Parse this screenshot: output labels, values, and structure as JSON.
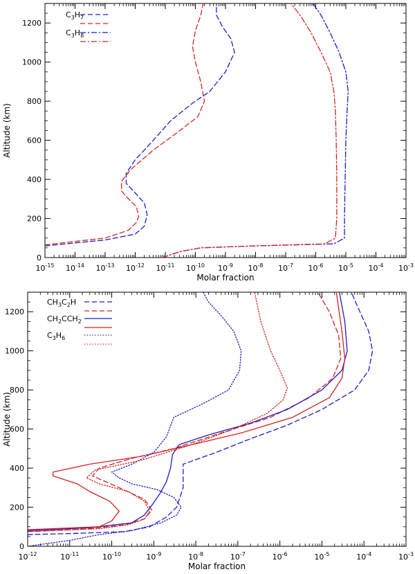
{
  "chart_data": [
    {
      "type": "line",
      "xscale": "log",
      "xlim": [
        1e-15,
        0.001
      ],
      "ylim": [
        0,
        1300
      ],
      "xlabel": "Molar fraction",
      "ylabel": "Altitude (km)",
      "legend_position": "top-left",
      "x_ticks": [
        {
          "base": "10",
          "exp": "-15"
        },
        {
          "base": "10",
          "exp": "-14"
        },
        {
          "base": "10",
          "exp": "-13"
        },
        {
          "base": "10",
          "exp": "-12"
        },
        {
          "base": "10",
          "exp": "-11"
        },
        {
          "base": "10",
          "exp": "-10"
        },
        {
          "base": "10",
          "exp": "-9"
        },
        {
          "base": "10",
          "exp": "-8"
        },
        {
          "base": "10",
          "exp": "-7"
        },
        {
          "base": "10",
          "exp": "-6"
        },
        {
          "base": "10",
          "exp": "-5"
        },
        {
          "base": "10",
          "exp": "-4"
        },
        {
          "base": "10",
          "exp": "-3"
        }
      ],
      "y_ticks": [
        "0",
        "200",
        "400",
        "600",
        "800",
        "1000",
        "1200"
      ],
      "legend": [
        {
          "main": "C",
          "sub1": "3",
          "mid": "H",
          "sub2": "7",
          "style": "dashed"
        },
        {
          "main": "C",
          "sub1": "3",
          "mid": "H",
          "sub2": "8",
          "style": "dashdot"
        }
      ],
      "series": [
        {
          "name": "C3H7 (blue)",
          "color": "#1a1ac8",
          "style": "dashed",
          "x": [
            1e-15,
            1e-13,
            1e-12,
            2e-12,
            2.5e-12,
            2e-12,
            1e-12,
            5e-13,
            5e-13,
            1e-12,
            4e-12,
            1.5e-11,
            8e-11,
            3e-10,
            1e-09,
            2e-09,
            1.5e-09,
            8e-10,
            5e-10,
            5e-10
          ],
          "y": [
            60,
            90,
            120,
            160,
            220,
            280,
            330,
            380,
            430,
            500,
            600,
            700,
            790,
            850,
            950,
            1050,
            1120,
            1180,
            1240,
            1300
          ]
        },
        {
          "name": "C3H7 (red)",
          "color": "#d42020",
          "style": "dashed",
          "x": [
            1e-15,
            1e-13,
            6e-13,
            1.1e-12,
            1.3e-12,
            1.1e-12,
            6e-13,
            3.5e-13,
            3.5e-13,
            7e-13,
            4e-12,
            2.5e-11,
            1.2e-10,
            2e-10,
            1.5e-10,
            1e-10,
            8e-11,
            1e-10,
            1.5e-10,
            1.8e-10
          ],
          "y": [
            65,
            100,
            140,
            180,
            210,
            260,
            300,
            340,
            390,
            450,
            550,
            640,
            720,
            800,
            900,
            1000,
            1080,
            1160,
            1240,
            1300
          ]
        },
        {
          "name": "C3H8 (blue)",
          "color": "#1a1ac8",
          "style": "dashdot",
          "x": [
            8e-12,
            3e-11,
            1.5e-10,
            1e-08,
            4e-06,
            9e-06,
            9e-06,
            9.5e-06,
            1e-05,
            1.1e-05,
            1.2e-05,
            1e-05,
            6e-06,
            3e-06,
            1.5e-06,
            8e-07
          ],
          "y": [
            0,
            30,
            50,
            60,
            70,
            100,
            200,
            400,
            600,
            750,
            850,
            950,
            1050,
            1150,
            1240,
            1300
          ]
        },
        {
          "name": "C3H8 (red)",
          "color": "#d42020",
          "style": "dashdot",
          "x": [
            8e-12,
            3e-11,
            1.5e-10,
            1e-08,
            2e-06,
            4.5e-06,
            5e-06,
            5e-06,
            4.8e-06,
            4.5e-06,
            4e-06,
            3e-06,
            1.5e-06,
            7e-07,
            3e-07,
            1.5e-07
          ],
          "y": [
            0,
            30,
            50,
            60,
            70,
            100,
            200,
            400,
            600,
            750,
            850,
            950,
            1050,
            1150,
            1240,
            1300
          ]
        }
      ]
    },
    {
      "type": "line",
      "xscale": "log",
      "xlim": [
        1e-12,
        0.001
      ],
      "ylim": [
        0,
        1300
      ],
      "xlabel": "Molar fraction",
      "ylabel": "Altitude (km)",
      "legend_position": "top-left",
      "x_ticks": [
        {
          "base": "10",
          "exp": "-12"
        },
        {
          "base": "10",
          "exp": "-11"
        },
        {
          "base": "10",
          "exp": "-10"
        },
        {
          "base": "10",
          "exp": "-9"
        },
        {
          "base": "10",
          "exp": "-8"
        },
        {
          "base": "10",
          "exp": "-7"
        },
        {
          "base": "10",
          "exp": "-6"
        },
        {
          "base": "10",
          "exp": "-5"
        },
        {
          "base": "10",
          "exp": "-4"
        },
        {
          "base": "10",
          "exp": "-3"
        }
      ],
      "y_ticks": [
        "0",
        "200",
        "400",
        "600",
        "800",
        "1000",
        "1200"
      ],
      "legend": [
        {
          "segments": [
            {
              "t": "CH",
              "s": false
            },
            {
              "t": "3",
              "s": true
            },
            {
              "t": "C",
              "s": false
            },
            {
              "t": "2",
              "s": true
            },
            {
              "t": "H",
              "s": false
            }
          ],
          "style": "dashed"
        },
        {
          "segments": [
            {
              "t": "CH",
              "s": false
            },
            {
              "t": "2",
              "s": true
            },
            {
              "t": "CCH",
              "s": false
            },
            {
              "t": "2",
              "s": true
            }
          ],
          "style": "solid"
        },
        {
          "segments": [
            {
              "t": "C",
              "s": false
            },
            {
              "t": "3",
              "s": true
            },
            {
              "t": "H",
              "s": false
            },
            {
              "t": "6",
              "s": true
            }
          ],
          "style": "dotted"
        }
      ],
      "series": [
        {
          "name": "CH3C2H (blue)",
          "color": "#1a1ac8",
          "style": "dashed",
          "x": [
            1e-12,
            1e-11,
            2e-10,
            8e-10,
            2e-09,
            3.5e-09,
            5e-09,
            5e-09,
            5e-09,
            3e-08,
            2e-07,
            1.5e-06,
            1e-05,
            6e-05,
            0.00013,
            0.00016,
            0.00013,
            8e-05,
            5e-05
          ],
          "y": [
            60,
            65,
            75,
            100,
            150,
            200,
            300,
            350,
            420,
            480,
            550,
            620,
            700,
            800,
            900,
            1000,
            1100,
            1200,
            1300
          ]
        },
        {
          "name": "CH3C2H (red)",
          "color": "#d42020",
          "style": "dashed",
          "x": [
            1e-12,
            3e-11,
            2e-10,
            6e-10,
            9e-10,
            6e-10,
            1.5e-10,
            3.5e-11,
            5e-11,
            3e-10,
            3e-09,
            4e-08,
            6e-07,
            5e-06,
            1.8e-05,
            2.8e-05,
            2.5e-05,
            1.5e-05,
            8e-06
          ],
          "y": [
            75,
            90,
            110,
            140,
            185,
            240,
            300,
            360,
            400,
            450,
            500,
            580,
            660,
            760,
            860,
            960,
            1080,
            1200,
            1300
          ]
        },
        {
          "name": "CH2CCH2 (blue)",
          "color": "#1a1ac8",
          "style": "solid",
          "x": [
            1e-12,
            3e-11,
            3e-10,
            6e-10,
            9e-10,
            1.4e-09,
            2e-09,
            2.5e-09,
            2.8e-09,
            4e-09,
            2e-08,
            2e-07,
            1.5e-06,
            1e-05,
            3e-05,
            4e-05,
            3.5e-05,
            2.6e-05
          ],
          "y": [
            80,
            95,
            120,
            160,
            210,
            270,
            330,
            400,
            470,
            520,
            570,
            630,
            700,
            800,
            900,
            1000,
            1150,
            1300
          ]
        },
        {
          "name": "CH2CCH2 (red)",
          "color": "#d42020",
          "style": "solid",
          "x": [
            1e-12,
            5e-11,
            1e-10,
            1.5e-10,
            9e-11,
            3e-11,
            1.5e-11,
            4e-12,
            4e-12,
            3e-11,
            5e-10,
            8e-09,
            1.2e-07,
            2e-06,
            1.5e-05,
            3e-05,
            3.5e-05,
            3e-05,
            2.2e-05
          ],
          "y": [
            85,
            100,
            130,
            180,
            230,
            280,
            320,
            360,
            380,
            420,
            460,
            520,
            580,
            660,
            760,
            860,
            960,
            1100,
            1300
          ]
        },
        {
          "name": "C3H6 (blue)",
          "color": "#1a1ac8",
          "style": "dotted",
          "x": [
            1e-12,
            1e-11,
            5e-11,
            3e-10,
            1.5e-09,
            3.5e-09,
            4.5e-09,
            3e-09,
            1.2e-09,
            3e-10,
            1.5e-10,
            1e-10,
            3e-10,
            1e-09,
            2e-09,
            3e-09,
            1.5e-08,
            6e-08,
            1.1e-07,
            1.2e-07,
            8e-08,
            4e-08,
            2e-08,
            1.5e-08
          ],
          "y": [
            0,
            30,
            60,
            80,
            120,
            160,
            200,
            250,
            290,
            320,
            350,
            380,
            420,
            480,
            560,
            660,
            730,
            800,
            900,
            1000,
            1100,
            1180,
            1250,
            1300
          ]
        },
        {
          "name": "C3H6 (red)",
          "color": "#d42020",
          "style": "dotted",
          "x": [
            1e-12,
            5e-11,
            2.5e-10,
            6e-10,
            8e-10,
            6e-10,
            2.5e-10,
            5e-11,
            2.5e-11,
            4e-11,
            5e-10,
            8e-09,
            8e-08,
            5e-07,
            1.2e-06,
            1.5e-06,
            1e-06,
            6e-07,
            3.5e-07,
            2.5e-07
          ],
          "y": [
            75,
            90,
            110,
            140,
            180,
            230,
            280,
            320,
            350,
            390,
            440,
            520,
            600,
            680,
            750,
            810,
            900,
            1000,
            1150,
            1300
          ]
        }
      ]
    }
  ]
}
